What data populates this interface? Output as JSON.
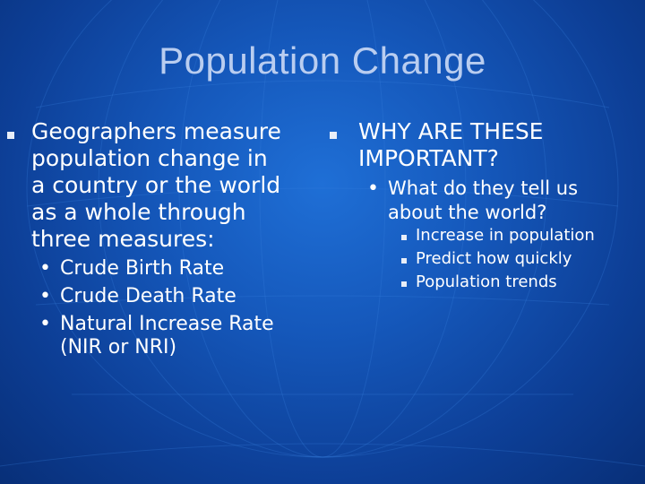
{
  "slide": {
    "title": "Population Change",
    "left": {
      "text_lines": [
        "Geographers measure",
        "population change in",
        "a country or the world",
        "as a whole through",
        "three measures:"
      ],
      "sub_items": [
        "Crude Birth Rate",
        "Crude Death Rate",
        "Natural Increase Rate",
        "(NIR or NRI)"
      ]
    },
    "right": {
      "text_lines": [
        "WHY ARE THESE",
        "IMPORTANT?"
      ],
      "sub_lines": [
        "What do they tell us",
        "about the world?"
      ],
      "sub_sub_items": [
        "Increase in population",
        "Predict how quickly",
        "Population trends"
      ]
    }
  }
}
